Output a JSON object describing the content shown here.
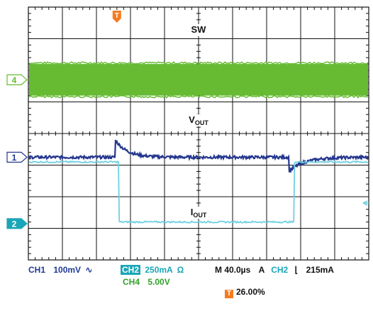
{
  "chart_data": {
    "type": "line",
    "title": "",
    "grid": true,
    "divisions": {
      "x": 10,
      "y": 8
    },
    "xlabel": "",
    "ylabel": "",
    "channels": [
      {
        "id": "4",
        "name": "SW",
        "label": "SW",
        "color": "#66bb33",
        "scale": "5.00V",
        "ground_div": 5.7,
        "trace": "switching band",
        "amplitude_div": 1.0
      },
      {
        "id": "1",
        "name": "VOUT",
        "label_main": "V",
        "label_sub": "OUT",
        "color": "#24378f",
        "scale": "100mV",
        "coupling": "AC",
        "ground_div": 3.25,
        "events": [
          {
            "t_div": 2.55,
            "jump_div": 0.55,
            "decay_div": 0.35
          },
          {
            "t_div": 7.65,
            "jump_div": -0.45,
            "decay_div": 0.45
          }
        ]
      },
      {
        "id": "2",
        "name": "IOUT",
        "label_main": "I",
        "label_sub": "OUT",
        "color": "#6ed0e0",
        "scale": "250mA",
        "ground_div": 1.15,
        "levels": [
          {
            "t_start": 0.0,
            "t_end": 2.65,
            "level_div": 3.1
          },
          {
            "t_start": 2.65,
            "t_end": 7.8,
            "level_div": 1.2
          },
          {
            "t_start": 7.8,
            "t_end": 10.0,
            "level_div": 3.1
          }
        ]
      }
    ]
  },
  "trigger_marker": "T",
  "readout": {
    "ch1": "CH1",
    "ch1_scale": "100mV",
    "ch1_coupling": "∿",
    "ch2_badge": "CH2",
    "ch2_scale": "250mA",
    "ch2_unit": "Ω",
    "ch4": "CH4",
    "ch4_scale": "5.00V",
    "timebase": "M 40.0µs",
    "trig_mode": "A",
    "trig_source": "CH2",
    "trig_slope": "⌊",
    "trig_level": "215mA",
    "trig_position_badge": "T",
    "trig_position": "26.00%"
  },
  "colors": {
    "ch1": "#24378f",
    "ch2": "#6ed0e0",
    "ch4": "#66bb33",
    "grid": "#111111",
    "trigger": "#f47b20"
  }
}
